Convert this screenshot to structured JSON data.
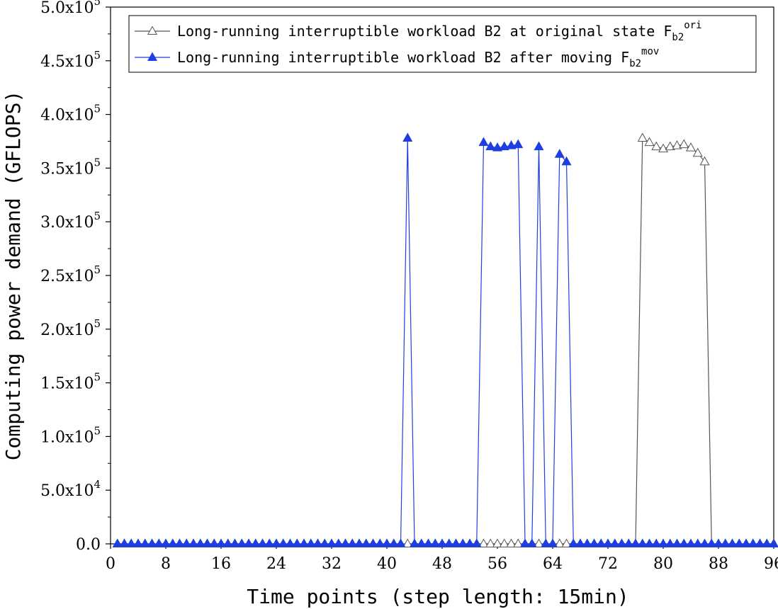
{
  "chart_data": {
    "type": "line",
    "xlabel": "Time points (step length: 15min)",
    "ylabel": "Computing power demand (GFLOPS)",
    "xlim": [
      0,
      96
    ],
    "ylim": [
      0,
      500000
    ],
    "xticks": [
      "0",
      "8",
      "16",
      "24",
      "32",
      "40",
      "48",
      "56",
      "64",
      "72",
      "80",
      "88",
      "96"
    ],
    "yticks": [
      {
        "mantissa": "0.0",
        "exp": ""
      },
      {
        "mantissa": "5.0x10",
        "exp": "4"
      },
      {
        "mantissa": "1.0x10",
        "exp": "5"
      },
      {
        "mantissa": "1.5x10",
        "exp": "5"
      },
      {
        "mantissa": "2.0x10",
        "exp": "5"
      },
      {
        "mantissa": "2.5x10",
        "exp": "5"
      },
      {
        "mantissa": "3.0x10",
        "exp": "5"
      },
      {
        "mantissa": "3.5x10",
        "exp": "5"
      },
      {
        "mantissa": "4.0x10",
        "exp": "5"
      },
      {
        "mantissa": "4.5x10",
        "exp": "5"
      },
      {
        "mantissa": "5.0x10",
        "exp": "5"
      }
    ],
    "grid": false,
    "legend_position": "top-right",
    "series": [
      {
        "name": "Long-running interruptible workload B2 at original state F",
        "name_sub": "b2",
        "name_sup": "ori",
        "color": "#555555",
        "marker": "triangle-open",
        "x": [
          1,
          2,
          3,
          4,
          5,
          6,
          7,
          8,
          9,
          10,
          11,
          12,
          13,
          14,
          15,
          16,
          17,
          18,
          19,
          20,
          21,
          22,
          23,
          24,
          25,
          26,
          27,
          28,
          29,
          30,
          31,
          32,
          33,
          34,
          35,
          36,
          37,
          38,
          39,
          40,
          41,
          42,
          43,
          44,
          45,
          46,
          47,
          48,
          49,
          50,
          51,
          52,
          53,
          54,
          55,
          56,
          57,
          58,
          59,
          60,
          61,
          62,
          63,
          64,
          65,
          66,
          67,
          68,
          69,
          70,
          71,
          72,
          73,
          74,
          75,
          76,
          77,
          78,
          79,
          80,
          81,
          82,
          83,
          84,
          85,
          86,
          87,
          88,
          89,
          90,
          91,
          92,
          93,
          94,
          95,
          96
        ],
        "values": [
          0,
          0,
          0,
          0,
          0,
          0,
          0,
          0,
          0,
          0,
          0,
          0,
          0,
          0,
          0,
          0,
          0,
          0,
          0,
          0,
          0,
          0,
          0,
          0,
          0,
          0,
          0,
          0,
          0,
          0,
          0,
          0,
          0,
          0,
          0,
          0,
          0,
          0,
          0,
          0,
          0,
          0,
          0,
          0,
          0,
          0,
          0,
          0,
          0,
          0,
          0,
          0,
          0,
          0,
          0,
          0,
          0,
          0,
          0,
          0,
          0,
          0,
          0,
          0,
          0,
          0,
          0,
          0,
          0,
          0,
          0,
          0,
          0,
          0,
          0,
          0,
          378000,
          374000,
          370000,
          368000,
          370000,
          371000,
          372000,
          369000,
          364000,
          356000,
          0,
          0,
          0,
          0,
          0,
          0,
          0,
          0,
          0,
          0
        ]
      },
      {
        "name": "Long-running interruptible workload B2 after moving F",
        "name_sub": "b2",
        "name_sup": "mov",
        "color": "#1f3ee0",
        "marker": "triangle-filled",
        "x": [
          1,
          2,
          3,
          4,
          5,
          6,
          7,
          8,
          9,
          10,
          11,
          12,
          13,
          14,
          15,
          16,
          17,
          18,
          19,
          20,
          21,
          22,
          23,
          24,
          25,
          26,
          27,
          28,
          29,
          30,
          31,
          32,
          33,
          34,
          35,
          36,
          37,
          38,
          39,
          40,
          41,
          42,
          43,
          44,
          45,
          46,
          47,
          48,
          49,
          50,
          51,
          52,
          53,
          54,
          55,
          56,
          57,
          58,
          59,
          60,
          61,
          62,
          63,
          64,
          65,
          66,
          67,
          68,
          69,
          70,
          71,
          72,
          73,
          74,
          75,
          76,
          77,
          78,
          79,
          80,
          81,
          82,
          83,
          84,
          85,
          86,
          87,
          88,
          89,
          90,
          91,
          92,
          93,
          94,
          95,
          96
        ],
        "values": [
          0,
          0,
          0,
          0,
          0,
          0,
          0,
          0,
          0,
          0,
          0,
          0,
          0,
          0,
          0,
          0,
          0,
          0,
          0,
          0,
          0,
          0,
          0,
          0,
          0,
          0,
          0,
          0,
          0,
          0,
          0,
          0,
          0,
          0,
          0,
          0,
          0,
          0,
          0,
          0,
          0,
          0,
          378000,
          0,
          0,
          0,
          0,
          0,
          0,
          0,
          0,
          0,
          0,
          374000,
          370000,
          369000,
          370000,
          371000,
          372000,
          0,
          0,
          370000,
          0,
          0,
          363000,
          356000,
          0,
          0,
          0,
          0,
          0,
          0,
          0,
          0,
          0,
          0,
          0,
          0,
          0,
          0,
          0,
          0,
          0,
          0,
          0,
          0,
          0,
          0,
          0,
          0,
          0,
          0,
          0,
          0,
          0,
          0
        ]
      }
    ]
  }
}
